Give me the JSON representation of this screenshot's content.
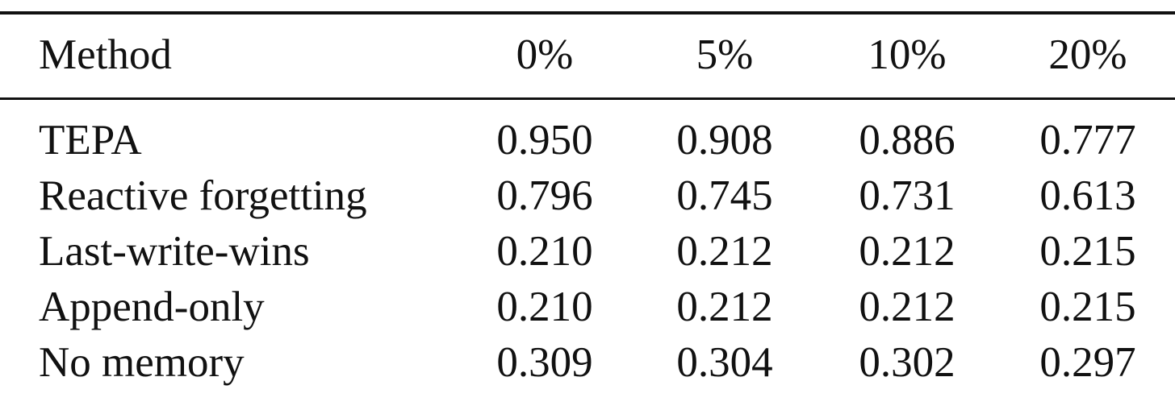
{
  "table": {
    "header": [
      "Method",
      "0%",
      "5%",
      "10%",
      "20%"
    ],
    "rows": [
      [
        "TEPA",
        "0.950",
        "0.908",
        "0.886",
        "0.777"
      ],
      [
        "Reactive forgetting",
        "0.796",
        "0.745",
        "0.731",
        "0.613"
      ],
      [
        "Last-write-wins",
        "0.210",
        "0.212",
        "0.212",
        "0.215"
      ],
      [
        "Append-only",
        "0.210",
        "0.212",
        "0.212",
        "0.215"
      ],
      [
        "No memory",
        "0.309",
        "0.304",
        "0.302",
        "0.297"
      ]
    ]
  }
}
